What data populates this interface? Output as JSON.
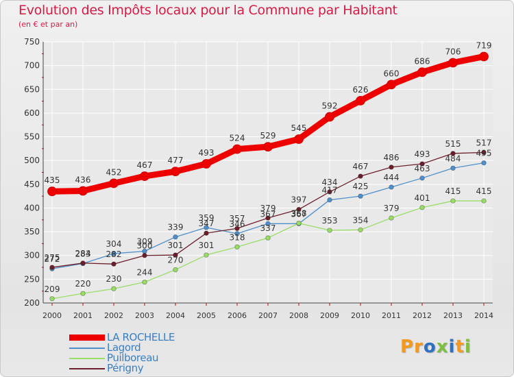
{
  "title": "Evolution des Impôts locaux pour la Commune par Habitant",
  "subtitle": "(en € et par an)",
  "logo": {
    "p1": "Pr",
    "o": "o",
    "x": "x",
    "i": "i",
    "t": "t",
    "i2": "i"
  },
  "colors": {
    "red": "#ee0000",
    "blue": "#4f8fcc",
    "green": "#99dd66",
    "brown": "#6b1f2b",
    "logo_orange": "#f39a1e",
    "logo_blue": "#2d6fc1",
    "logo_green": "#7fbf3f"
  },
  "chart_data": {
    "type": "line",
    "title": "Evolution des Impôts locaux pour la Commune par Habitant",
    "ylabel": "(en € et par an)",
    "xlabel": "",
    "ylim": [
      200,
      750
    ],
    "yticks": [
      200,
      250,
      300,
      350,
      400,
      450,
      500,
      550,
      600,
      650,
      700,
      750
    ],
    "categories": [
      "2000",
      "2001",
      "2002",
      "2003",
      "2004",
      "2005",
      "2006",
      "2007",
      "2008",
      "2009",
      "2010",
      "2011",
      "2012",
      "2013",
      "2014"
    ],
    "series": [
      {
        "name": "LA ROCHELLE",
        "color": "#ee0000",
        "values": [
          435,
          436,
          452,
          467,
          477,
          493,
          524,
          529,
          545,
          592,
          626,
          660,
          686,
          706,
          719
        ]
      },
      {
        "name": "Lagord",
        "color": "#4f8fcc",
        "values": [
          272,
          283,
          304,
          309,
          339,
          359,
          346,
          367,
          367,
          417,
          425,
          444,
          463,
          484,
          495
        ]
      },
      {
        "name": "Puilboreau",
        "color": "#99dd66",
        "values": [
          209,
          220,
          230,
          244,
          270,
          301,
          318,
          337,
          368,
          353,
          354,
          379,
          401,
          415,
          415
        ]
      },
      {
        "name": "Périgny",
        "color": "#6b1f2b",
        "values": [
          275,
          284,
          282,
          300,
          301,
          347,
          357,
          379,
          397,
          434,
          467,
          486,
          493,
          515,
          517
        ]
      }
    ],
    "value_labels": [
      [
        "435",
        "436",
        "452",
        "467",
        "477",
        "493",
        "524",
        "529",
        "545",
        "592",
        "626",
        "660",
        "686",
        "706",
        "719"
      ],
      [
        "272",
        "283",
        "304",
        "309",
        "339",
        "359",
        "346",
        "367",
        "367",
        "417",
        "425",
        "444",
        "463",
        "484",
        "495"
      ],
      [
        "209",
        "220",
        "230",
        "244",
        "270",
        "301",
        "318",
        "337",
        "368",
        "353",
        "354",
        "379",
        "401",
        "415",
        "415"
      ],
      [
        "275",
        "284",
        "282",
        "300",
        "301",
        "347",
        "357",
        "379",
        "397",
        "434",
        "467",
        "486",
        "493",
        "515",
        "517"
      ]
    ]
  }
}
